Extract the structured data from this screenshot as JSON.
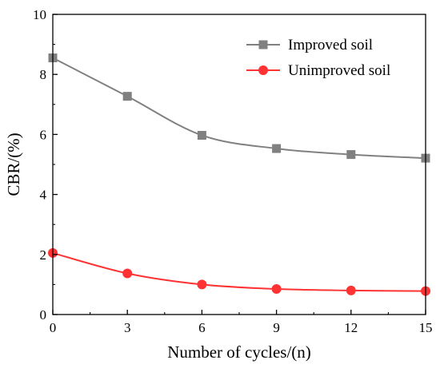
{
  "chart_data": {
    "type": "line",
    "title": "",
    "xlabel": "Number of cycles/(n)",
    "ylabel": "CBR/(%)",
    "xlim": [
      0,
      15
    ],
    "ylim": [
      0,
      10
    ],
    "xticks": [
      0,
      3,
      6,
      9,
      12,
      15
    ],
    "yticks": [
      0,
      2,
      4,
      6,
      8,
      10
    ],
    "x": [
      0,
      3,
      6,
      9,
      12,
      15
    ],
    "grid": false,
    "legend_position": "top-right",
    "series": [
      {
        "name": "Improved soil",
        "values": [
          8.55,
          7.27,
          5.97,
          5.53,
          5.33,
          5.21
        ],
        "color": "#808080",
        "marker": "square"
      },
      {
        "name": "Unimproved soil",
        "values": [
          2.05,
          1.37,
          1.0,
          0.85,
          0.8,
          0.78
        ],
        "color": "#ff3333",
        "marker": "circle"
      }
    ]
  }
}
